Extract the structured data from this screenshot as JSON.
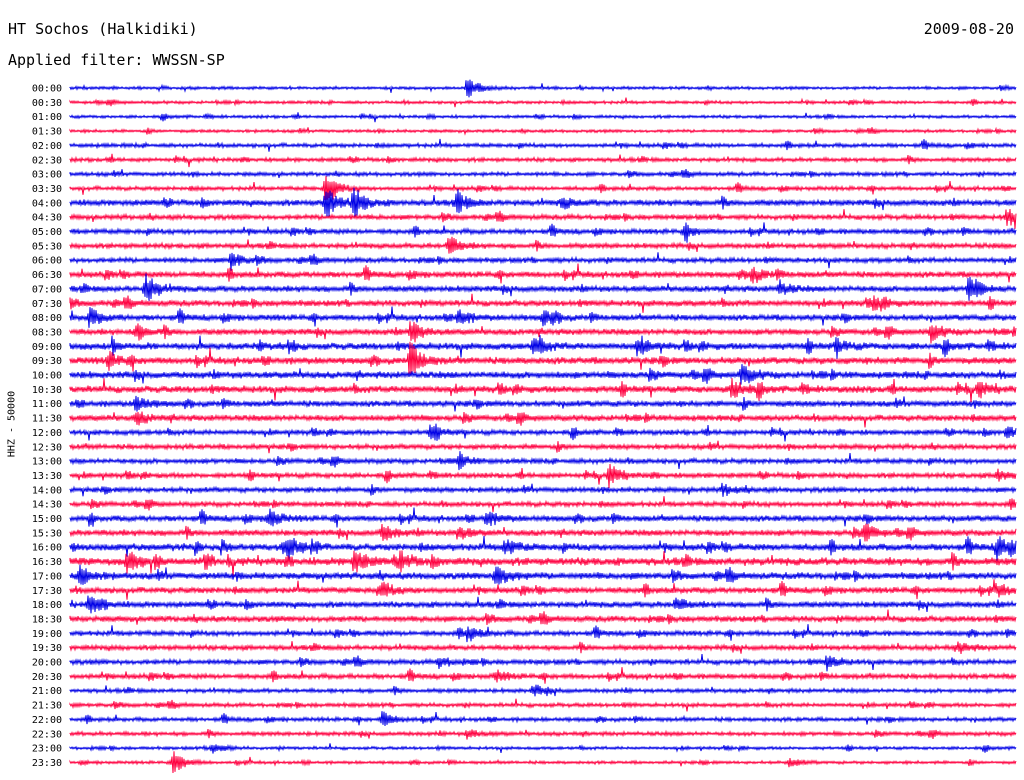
{
  "header": {
    "station": "HT Sochos (Halkidiki)",
    "date": "2009-08-20",
    "filter": "Applied filter: WWSSN-SP"
  },
  "colors": {
    "blue": "#0000e6",
    "red": "#ff0040"
  },
  "chart_data": {
    "type": "line",
    "title": "HT Sochos (Halkidiki)",
    "subtitle": "Applied filter: WWSSN-SP",
    "ylabel": "HHZ - 50000",
    "row_labels": [
      "00:00",
      "00:30",
      "01:00",
      "01:30",
      "02:00",
      "02:30",
      "03:00",
      "03:30",
      "04:00",
      "04:30",
      "05:00",
      "05:30",
      "06:00",
      "06:30",
      "07:00",
      "07:30",
      "08:00",
      "08:30",
      "09:00",
      "09:30",
      "10:00",
      "10:30",
      "11:00",
      "11:30",
      "12:00",
      "12:30",
      "13:00",
      "13:30",
      "14:00",
      "14:30",
      "15:00",
      "15:30",
      "16:00",
      "16:30",
      "17:00",
      "17:30",
      "18:00",
      "18:30",
      "19:00",
      "19:30",
      "20:00",
      "20:30",
      "21:00",
      "21:30",
      "22:00",
      "22:30",
      "23:00",
      "23:30"
    ],
    "row_colors": [
      "blue",
      "red"
    ],
    "noise_level": [
      1.5,
      1.5,
      1.5,
      1.5,
      2,
      2,
      2,
      2,
      3,
      2.5,
      2.5,
      2.5,
      2.5,
      3,
      3,
      3,
      3,
      3,
      3.5,
      3.5,
      3.5,
      3.5,
      3,
      3,
      2.5,
      2.5,
      2.5,
      2.5,
      2.5,
      2.5,
      3,
      3,
      3.5,
      4,
      3.5,
      3,
      3,
      3,
      2.5,
      2.5,
      2.5,
      2.5,
      2,
      2,
      2,
      2,
      1.5,
      1.5
    ],
    "events": [
      {
        "row": 0,
        "x": 0.42,
        "amp": 12
      },
      {
        "row": 7,
        "x": 0.27,
        "amp": 16
      },
      {
        "row": 8,
        "x": 0.27,
        "amp": 18
      },
      {
        "row": 8,
        "x": 0.3,
        "amp": 15
      },
      {
        "row": 8,
        "x": 0.41,
        "amp": 9
      },
      {
        "row": 8,
        "x": 0.52,
        "amp": 6
      },
      {
        "row": 9,
        "x": 0.99,
        "amp": 9
      },
      {
        "row": 10,
        "x": 0.65,
        "amp": 6
      },
      {
        "row": 11,
        "x": 0.4,
        "amp": 10
      },
      {
        "row": 12,
        "x": 0.17,
        "amp": 9
      },
      {
        "row": 13,
        "x": 0.72,
        "amp": 9
      },
      {
        "row": 14,
        "x": 0.08,
        "amp": 15
      },
      {
        "row": 14,
        "x": 0.95,
        "amp": 14
      },
      {
        "row": 14,
        "x": 0.75,
        "amp": 7
      },
      {
        "row": 15,
        "x": 0.85,
        "amp": 7
      },
      {
        "row": 16,
        "x": 0.02,
        "amp": 10
      },
      {
        "row": 16,
        "x": 0.41,
        "amp": 9
      },
      {
        "row": 16,
        "x": 0.5,
        "amp": 8
      },
      {
        "row": 17,
        "x": 0.07,
        "amp": 8
      },
      {
        "row": 17,
        "x": 0.36,
        "amp": 12
      },
      {
        "row": 17,
        "x": 0.91,
        "amp": 9
      },
      {
        "row": 18,
        "x": 0.49,
        "amp": 9
      },
      {
        "row": 18,
        "x": 0.6,
        "amp": 8
      },
      {
        "row": 18,
        "x": 0.81,
        "amp": 7
      },
      {
        "row": 19,
        "x": 0.04,
        "amp": 8
      },
      {
        "row": 19,
        "x": 0.36,
        "amp": 16
      },
      {
        "row": 20,
        "x": 0.71,
        "amp": 10
      },
      {
        "row": 21,
        "x": 0.7,
        "amp": 10
      },
      {
        "row": 21,
        "x": 0.96,
        "amp": 7
      },
      {
        "row": 22,
        "x": 0.07,
        "amp": 8
      },
      {
        "row": 23,
        "x": 0.07,
        "amp": 7
      },
      {
        "row": 24,
        "x": 0.38,
        "amp": 6
      },
      {
        "row": 24,
        "x": 0.99,
        "amp": 6
      },
      {
        "row": 26,
        "x": 0.41,
        "amp": 8
      },
      {
        "row": 27,
        "x": 0.57,
        "amp": 11
      },
      {
        "row": 27,
        "x": 0.98,
        "amp": 6
      },
      {
        "row": 28,
        "x": 0.69,
        "amp": 6
      },
      {
        "row": 30,
        "x": 0.21,
        "amp": 10
      },
      {
        "row": 30,
        "x": 0.44,
        "amp": 8
      },
      {
        "row": 31,
        "x": 0.33,
        "amp": 9
      },
      {
        "row": 31,
        "x": 0.41,
        "amp": 7
      },
      {
        "row": 31,
        "x": 0.84,
        "amp": 9
      },
      {
        "row": 32,
        "x": 0.23,
        "amp": 11
      },
      {
        "row": 32,
        "x": 0.46,
        "amp": 8
      },
      {
        "row": 32,
        "x": 0.98,
        "amp": 14
      },
      {
        "row": 33,
        "x": 0.06,
        "amp": 10
      },
      {
        "row": 33,
        "x": 0.3,
        "amp": 12
      },
      {
        "row": 33,
        "x": 0.35,
        "amp": 8
      },
      {
        "row": 34,
        "x": 0.01,
        "amp": 10
      },
      {
        "row": 34,
        "x": 0.45,
        "amp": 14
      },
      {
        "row": 35,
        "x": 0.33,
        "amp": 8
      },
      {
        "row": 35,
        "x": 0.98,
        "amp": 6
      },
      {
        "row": 36,
        "x": 0.02,
        "amp": 10
      },
      {
        "row": 36,
        "x": 0.64,
        "amp": 6
      },
      {
        "row": 38,
        "x": 0.42,
        "amp": 8
      },
      {
        "row": 39,
        "x": 0.94,
        "amp": 6
      },
      {
        "row": 40,
        "x": 0.8,
        "amp": 8
      },
      {
        "row": 40,
        "x": 0.39,
        "amp": 6
      },
      {
        "row": 41,
        "x": 0.45,
        "amp": 6
      },
      {
        "row": 42,
        "x": 0.49,
        "amp": 6
      },
      {
        "row": 44,
        "x": 0.33,
        "amp": 9
      },
      {
        "row": 45,
        "x": 0.42,
        "amp": 5
      },
      {
        "row": 46,
        "x": 0.15,
        "amp": 6
      },
      {
        "row": 47,
        "x": 0.11,
        "amp": 12
      },
      {
        "row": 47,
        "x": 0.76,
        "amp": 5
      }
    ]
  }
}
